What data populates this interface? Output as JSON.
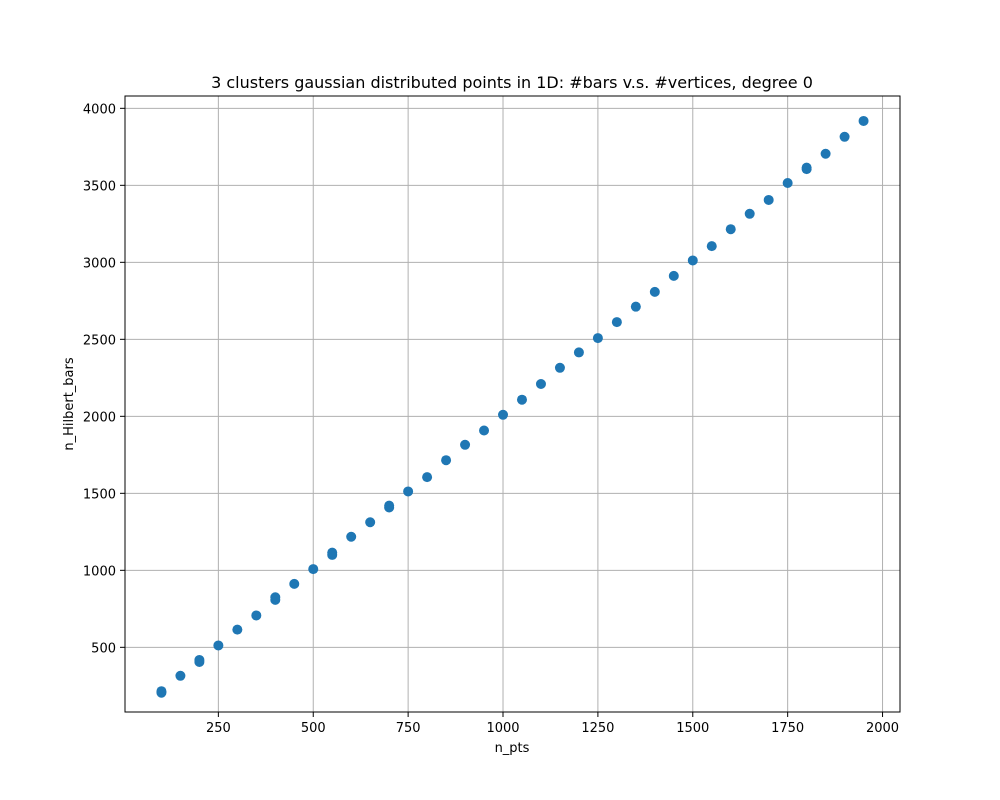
{
  "chart_data": {
    "type": "scatter",
    "title": "3 clusters gaussian distributed points in 1D: #bars v.s. #vertices, degree 0",
    "xlabel": "n_pts",
    "ylabel": "n_Hilbert_bars",
    "xlim": [
      4,
      2046
    ],
    "ylim": [
      80,
      4080
    ],
    "xticks": [
      250,
      500,
      750,
      1000,
      1250,
      1500,
      1750,
      2000
    ],
    "yticks": [
      500,
      1000,
      1500,
      2000,
      2500,
      3000,
      3500,
      4000
    ],
    "grid": true,
    "color": "#1f77b4",
    "series": [
      {
        "x": [
          100,
          100,
          150,
          200,
          200,
          250,
          300,
          350,
          400,
          400,
          450,
          500,
          550,
          550,
          600,
          650,
          700,
          700,
          750,
          800,
          850,
          900,
          950,
          1000,
          1050,
          1100,
          1150,
          1200,
          1250,
          1300,
          1350,
          1400,
          1450,
          1500,
          1550,
          1600,
          1650,
          1700,
          1750,
          1800,
          1800,
          1850,
          1900,
          1950
        ],
        "y": [
          205,
          215,
          315,
          405,
          418,
          512,
          615,
          707,
          808,
          825,
          912,
          1008,
          1100,
          1115,
          1218,
          1312,
          1408,
          1420,
          1512,
          1605,
          1715,
          1815,
          1908,
          2010,
          2108,
          2210,
          2315,
          2415,
          2508,
          2612,
          2712,
          2808,
          2912,
          3012,
          3105,
          3215,
          3315,
          3405,
          3515,
          3605,
          3615,
          3705,
          3815,
          3918
        ]
      }
    ]
  }
}
